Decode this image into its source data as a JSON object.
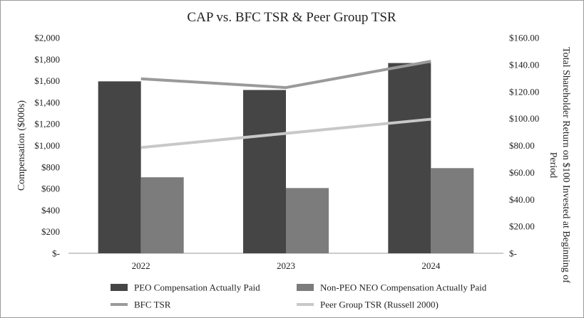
{
  "chart_data": {
    "type": "bar+line",
    "title": "CAP vs. BFC TSR & Peer Group TSR",
    "categories": [
      "2022",
      "2023",
      "2024"
    ],
    "left_axis": {
      "label": "Compensation ($000s)",
      "range": [
        0,
        2000
      ],
      "step": 200,
      "ticks": [
        "$-",
        "$200",
        "$400",
        "$600",
        "$800",
        "$1,000",
        "$1,200",
        "$1,400",
        "$1,600",
        "$1,800",
        "$2,000"
      ]
    },
    "right_axis": {
      "label_line1": "Total Shareholder Return on $100 Invested at Beginning of",
      "label_line2": "Period",
      "range": [
        0,
        160
      ],
      "step": 20,
      "ticks": [
        "$-",
        "$20.00",
        "$40.00",
        "$60.00",
        "$80.00",
        "$100.00",
        "$120.00",
        "$140.00",
        "$160.00"
      ]
    },
    "bar_series": [
      {
        "name": "PEO Compensation Actually Paid",
        "axis": "left",
        "color": "#454545",
        "values": [
          1595,
          1515,
          1765
        ]
      },
      {
        "name": "Non-PEO NEO Compensation Actually Paid",
        "axis": "left",
        "color": "#7c7c7c",
        "values": [
          705,
          605,
          790
        ]
      }
    ],
    "line_series": [
      {
        "name": "BFC TSR",
        "axis": "right",
        "color": "#9a9a9a",
        "values": [
          129.5,
          123,
          142.5
        ]
      },
      {
        "name": "Peer Group TSR (Russell 2000)",
        "axis": "right",
        "color": "#c8c8c8",
        "values": [
          78.5,
          89,
          99.5
        ]
      }
    ],
    "legend_position": "bottom",
    "grid": false
  }
}
